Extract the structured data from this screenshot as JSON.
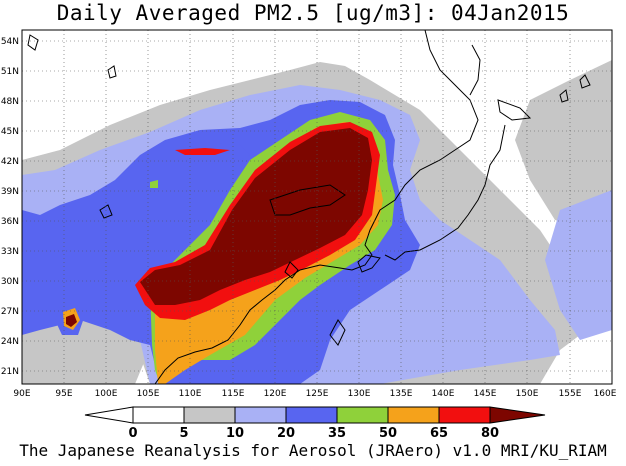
{
  "title": "Daily Averaged PM2.5 [ug/m3]: 04Jan2015",
  "credit": "The Japanese Reanalysis for Aerosol (JRAero) v1.0 MRI/KU_RIAM",
  "map": {
    "lon_range": [
      90,
      160
    ],
    "lat_range": [
      20,
      55
    ],
    "lon_ticks": [
      "90E",
      "95E",
      "100E",
      "105E",
      "110E",
      "115E",
      "120E",
      "125E",
      "130E",
      "135E",
      "140E",
      "145E",
      "150E",
      "155E",
      "160E"
    ],
    "lat_ticks": [
      "54N",
      "51N",
      "48N",
      "45N",
      "42N",
      "39N",
      "36N",
      "33N",
      "30N",
      "27N",
      "24N",
      "21N"
    ]
  },
  "colorbar": {
    "labels": [
      "0",
      "5",
      "10",
      "20",
      "35",
      "50",
      "65",
      "80"
    ],
    "colors": [
      "#ffffff",
      "#c6c6c6",
      "#a9b1f5",
      "#5865f0",
      "#8fd13a",
      "#f5a21b",
      "#f20f0f",
      "#7d0600"
    ]
  }
}
